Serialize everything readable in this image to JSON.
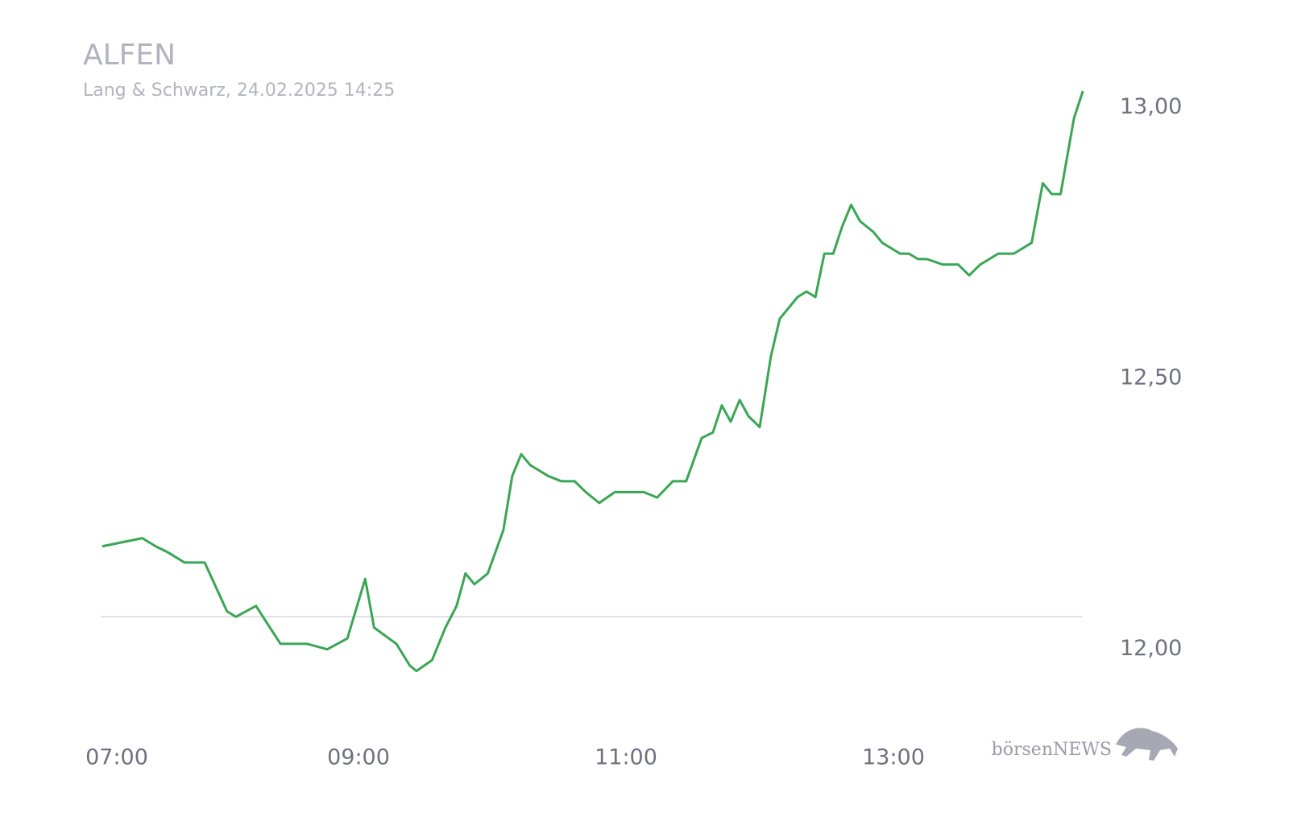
{
  "chart_data": {
    "type": "line",
    "title": "ALFEN",
    "subtitle": "Lang & Schwarz, 24.02.2025 14:25",
    "watermark": "börsenNEWS",
    "x": [
      "07:05",
      "07:23",
      "07:29",
      "07:34",
      "07:42",
      "07:51",
      "08:01",
      "08:05",
      "08:14",
      "08:25",
      "08:37",
      "08:46",
      "08:55",
      "09:03",
      "09:07",
      "09:17",
      "09:23",
      "09:26",
      "09:33",
      "09:39",
      "09:44",
      "09:48",
      "09:52",
      "09:58",
      "10:05",
      "10:09",
      "10:13",
      "10:17",
      "10:25",
      "10:31",
      "10:37",
      "10:42",
      "10:48",
      "10:55",
      "11:01",
      "11:08",
      "11:14",
      "11:21",
      "11:27",
      "11:34",
      "11:39",
      "11:43",
      "11:47",
      "11:51",
      "11:55",
      "12:00",
      "12:05",
      "12:09",
      "12:17",
      "12:21",
      "12:25",
      "12:29",
      "12:33",
      "12:37",
      "12:41",
      "12:45",
      "12:51",
      "12:55",
      "13:03",
      "13:07",
      "13:11",
      "13:15",
      "13:22",
      "13:29",
      "13:34",
      "13:39",
      "13:47",
      "13:54",
      "14:02",
      "14:07",
      "14:11",
      "14:15",
      "14:21",
      "14:25"
    ],
    "series": [
      {
        "name": "ALFEN",
        "color": "#3aa655",
        "values": [
          12.19,
          12.205,
          12.19,
          12.18,
          12.16,
          12.16,
          12.07,
          12.06,
          12.08,
          12.01,
          12.01,
          12.0,
          12.02,
          12.13,
          12.04,
          12.01,
          11.97,
          11.96,
          11.98,
          12.04,
          12.08,
          12.14,
          12.12,
          12.14,
          12.22,
          12.32,
          12.36,
          12.34,
          12.32,
          12.31,
          12.31,
          12.29,
          12.27,
          12.29,
          12.29,
          12.29,
          12.28,
          12.31,
          12.31,
          12.39,
          12.4,
          12.45,
          12.42,
          12.46,
          12.43,
          12.41,
          12.54,
          12.61,
          12.65,
          12.66,
          12.65,
          12.73,
          12.73,
          12.78,
          12.82,
          12.79,
          12.77,
          12.75,
          12.73,
          12.73,
          12.72,
          12.72,
          12.71,
          12.71,
          12.69,
          12.71,
          12.73,
          12.73,
          12.75,
          12.86,
          12.84,
          12.84,
          12.98,
          13.03
        ]
      }
    ],
    "reference_line": 12.06,
    "xlim": [
      "07:00",
      "14:30"
    ],
    "xticks": [
      "07:00",
      "09:00",
      "11:00",
      "13:00"
    ],
    "ylim": [
      11.9,
      13.1
    ],
    "yticks": [
      {
        "value": 12,
        "label": "12,00"
      },
      {
        "value": 12.5,
        "label": "12,50"
      },
      {
        "value": 13,
        "label": "13,00"
      }
    ]
  }
}
